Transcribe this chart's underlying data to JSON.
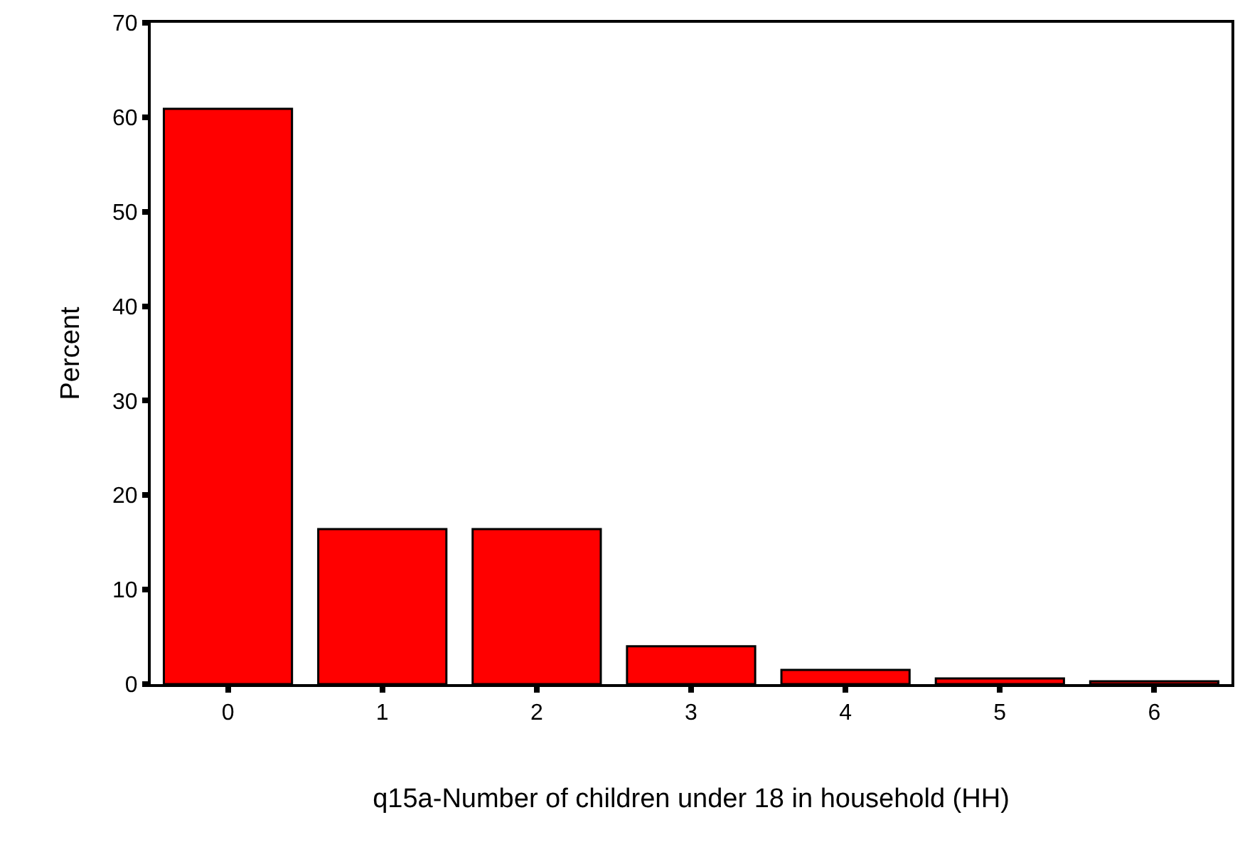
{
  "chart_data": {
    "type": "bar",
    "xlabel": "q15a-Number of children under 18 in household (HH)",
    "ylabel": "Percent",
    "categories": [
      "0",
      "1",
      "2",
      "3",
      "4",
      "5",
      "6"
    ],
    "series": [
      {
        "color": "#ff0000",
        "values": [
          60.9,
          16.4,
          16.4,
          4.0,
          1.5,
          0.6,
          0.3
        ]
      }
    ],
    "ylim": [
      0,
      70
    ],
    "yticks": [
      0,
      10,
      20,
      30,
      40,
      50,
      60,
      70
    ]
  }
}
